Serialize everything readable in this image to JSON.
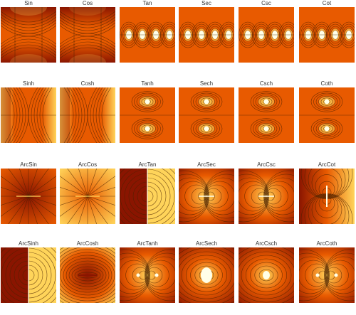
{
  "colors": {
    "dark": "#8a1500",
    "mid": "#e85a00",
    "light": "#ffd45a",
    "bright": "#ffffe8",
    "contour": "#4a2200"
  },
  "rows": [
    {
      "functions": [
        {
          "label": "Sin",
          "pattern": "sin"
        },
        {
          "label": "Cos",
          "pattern": "cos"
        },
        {
          "label": "Tan",
          "pattern": "poles-h"
        },
        {
          "label": "Sec",
          "pattern": "poles-h"
        },
        {
          "label": "Csc",
          "pattern": "poles-h"
        },
        {
          "label": "Cot",
          "pattern": "poles-h"
        }
      ]
    },
    {
      "functions": [
        {
          "label": "Sinh",
          "pattern": "sinh"
        },
        {
          "label": "Cosh",
          "pattern": "cosh"
        },
        {
          "label": "Tanh",
          "pattern": "poles-v"
        },
        {
          "label": "Sech",
          "pattern": "poles-v"
        },
        {
          "label": "Csch",
          "pattern": "poles-v"
        },
        {
          "label": "Coth",
          "pattern": "poles-v"
        }
      ]
    },
    {
      "functions": [
        {
          "label": "ArcSin",
          "pattern": "radial"
        },
        {
          "label": "ArcCos",
          "pattern": "radial-light"
        },
        {
          "label": "ArcTan",
          "pattern": "split"
        },
        {
          "label": "ArcSec",
          "pattern": "dipole"
        },
        {
          "label": "ArcCsc",
          "pattern": "dipole"
        },
        {
          "label": "ArcCot",
          "pattern": "bar"
        }
      ]
    },
    {
      "functions": [
        {
          "label": "ArcSinh",
          "pattern": "split"
        },
        {
          "label": "ArcCosh",
          "pattern": "ellipse"
        },
        {
          "label": "ArcTanh",
          "pattern": "dipole-points"
        },
        {
          "label": "ArcSech",
          "pattern": "blob"
        },
        {
          "label": "ArcCsch",
          "pattern": "blob-small"
        },
        {
          "label": "ArcCoth",
          "pattern": "dipole-points"
        }
      ]
    }
  ]
}
